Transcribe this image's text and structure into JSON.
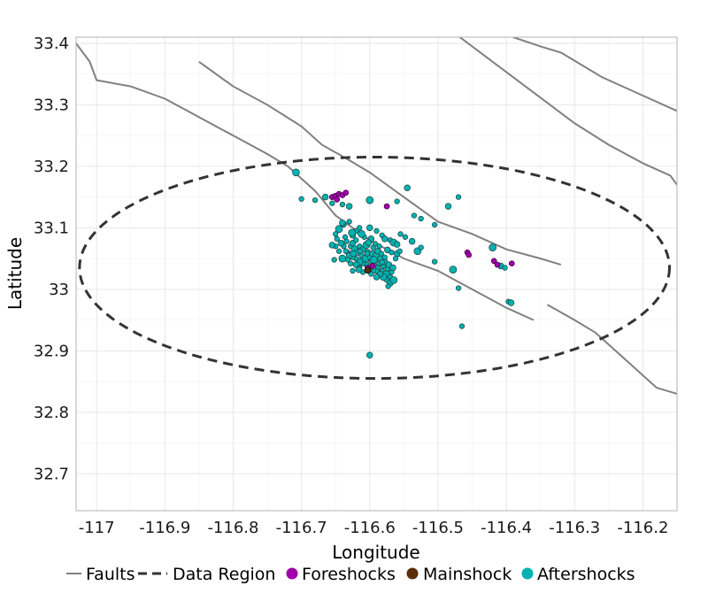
{
  "chart_data": {
    "type": "scatter",
    "title": "",
    "xlabel": "Longitude",
    "ylabel": "Latitude",
    "xlim": [
      -117.03,
      -116.15
    ],
    "ylim": [
      32.64,
      33.41
    ],
    "x_ticks": [
      -117,
      -116.9,
      -116.8,
      -116.7,
      -116.6,
      -116.5,
      -116.4,
      -116.3,
      -116.2
    ],
    "x_tick_labels": [
      "-117",
      "-116.9",
      "-116.8",
      "-116.7",
      "-116.6",
      "-116.5",
      "-116.4",
      "-116.3",
      "-116.2"
    ],
    "y_ticks": [
      32.7,
      32.8,
      32.9,
      33,
      33.1,
      33.2,
      33.3,
      33.4
    ],
    "y_tick_labels": [
      "32.7",
      "32.8",
      "32.9",
      "33",
      "33.1",
      "33.2",
      "33.3",
      "33.4"
    ],
    "grid": true,
    "legend_position": "bottom",
    "legend": [
      {
        "label": "Faults",
        "kind": "line",
        "color": "#808080"
      },
      {
        "label": "Data Region",
        "kind": "dashed",
        "color": "#333333"
      },
      {
        "label": "Foreshocks",
        "kind": "point",
        "color": "#a000a8"
      },
      {
        "label": "Mainshock",
        "kind": "point",
        "color": "#5a2e0c"
      },
      {
        "label": "Aftershocks",
        "kind": "point",
        "color": "#00b2b0"
      }
    ],
    "faults": [
      [
        [
          -117.03,
          33.4
        ],
        [
          -117.01,
          33.37
        ],
        [
          -117.0,
          33.34
        ],
        [
          -116.95,
          33.33
        ],
        [
          -116.9,
          33.31
        ],
        [
          -116.85,
          33.28
        ],
        [
          -116.8,
          33.25
        ],
        [
          -116.75,
          33.22
        ],
        [
          -116.72,
          33.2
        ],
        [
          -116.68,
          33.16
        ],
        [
          -116.65,
          33.12
        ],
        [
          -116.6,
          33.08
        ],
        [
          -116.55,
          33.05
        ],
        [
          -116.5,
          33.03
        ],
        [
          -116.45,
          33.0
        ],
        [
          -116.4,
          32.97
        ],
        [
          -116.36,
          32.95
        ]
      ],
      [
        [
          -116.85,
          33.37
        ],
        [
          -116.8,
          33.33
        ],
        [
          -116.75,
          33.3
        ],
        [
          -116.7,
          33.265
        ],
        [
          -116.67,
          33.235
        ],
        [
          -116.63,
          33.21
        ],
        [
          -116.6,
          33.19
        ],
        [
          -116.55,
          33.15
        ],
        [
          -116.5,
          33.11
        ],
        [
          -116.45,
          33.09
        ],
        [
          -116.4,
          33.065
        ],
        [
          -116.35,
          33.05
        ],
        [
          -116.32,
          33.04
        ]
      ],
      [
        [
          -116.34,
          32.975
        ],
        [
          -116.3,
          32.95
        ],
        [
          -116.27,
          32.93
        ],
        [
          -116.23,
          32.89
        ],
        [
          -116.18,
          32.84
        ],
        [
          -116.15,
          32.83
        ]
      ],
      [
        [
          -116.48,
          33.42
        ],
        [
          -116.42,
          33.37
        ],
        [
          -116.36,
          33.32
        ],
        [
          -116.3,
          33.27
        ],
        [
          -116.25,
          33.235
        ],
        [
          -116.2,
          33.205
        ],
        [
          -116.16,
          33.185
        ],
        [
          -116.15,
          33.17
        ]
      ],
      [
        [
          -116.39,
          33.41
        ],
        [
          -116.35,
          33.395
        ],
        [
          -116.32,
          33.385
        ],
        [
          -116.26,
          33.345
        ],
        [
          -116.2,
          33.315
        ],
        [
          -116.15,
          33.29
        ]
      ]
    ],
    "data_region": {
      "center": [
        -116.593,
        33.035
      ],
      "radius_deg": [
        0.432,
        0.18
      ]
    },
    "mainshock": {
      "x": -116.603,
      "y": 33.031
    },
    "foreshocks": [
      [
        -116.655,
        33.15
      ],
      [
        -116.65,
        33.152
      ],
      [
        -116.645,
        33.155
      ],
      [
        -116.64,
        33.153
      ],
      [
        -116.635,
        33.157
      ],
      [
        -116.648,
        33.146
      ],
      [
        -116.575,
        33.135
      ],
      [
        -116.457,
        33.06
      ],
      [
        -116.455,
        33.056
      ],
      [
        -116.418,
        33.046
      ],
      [
        -116.413,
        33.04
      ],
      [
        -116.392,
        33.042
      ],
      [
        -116.603,
        33.035
      ],
      [
        -116.596,
        33.038
      ]
    ],
    "aftershocks": [
      [
        -116.708,
        33.19
      ],
      [
        -116.7,
        33.147
      ],
      [
        -116.68,
        33.145
      ],
      [
        -116.665,
        33.15
      ],
      [
        -116.655,
        33.14
      ],
      [
        -116.64,
        33.138
      ],
      [
        -116.63,
        33.135
      ],
      [
        -116.6,
        33.145
      ],
      [
        -116.56,
        33.143
      ],
      [
        -116.545,
        33.165
      ],
      [
        -116.535,
        33.12
      ],
      [
        -116.525,
        33.115
      ],
      [
        -116.485,
        33.135
      ],
      [
        -116.47,
        33.15
      ],
      [
        -116.42,
        33.068
      ],
      [
        -116.408,
        33.038
      ],
      [
        -116.402,
        33.035
      ],
      [
        -116.397,
        32.98
      ],
      [
        -116.393,
        32.978
      ],
      [
        -116.505,
        33.105
      ],
      [
        -116.505,
        33.045
      ],
      [
        -116.478,
        33.032
      ],
      [
        -116.47,
        33.002
      ],
      [
        -116.465,
        32.94
      ],
      [
        -116.6,
        32.893
      ],
      [
        -116.555,
        33.09
      ],
      [
        -116.548,
        33.085
      ],
      [
        -116.538,
        33.078
      ],
      [
        -116.53,
        33.062
      ],
      [
        -116.525,
        33.068
      ],
      [
        -116.6,
        33.1
      ],
      [
        -116.59,
        33.095
      ],
      [
        -116.582,
        33.088
      ],
      [
        -116.578,
        33.082
      ],
      [
        -116.57,
        33.08
      ],
      [
        -116.565,
        33.076
      ],
      [
        -116.56,
        33.073
      ],
      [
        -116.615,
        33.1
      ],
      [
        -116.62,
        33.095
      ],
      [
        -116.625,
        33.088
      ],
      [
        -116.63,
        33.11
      ],
      [
        -116.638,
        33.105
      ],
      [
        -116.645,
        33.098
      ],
      [
        -116.65,
        33.09
      ],
      [
        -116.652,
        33.048
      ],
      [
        -116.64,
        33.108
      ],
      [
        -116.632,
        33.06
      ],
      [
        -116.628,
        33.07
      ],
      [
        -116.625,
        33.075
      ],
      [
        -116.622,
        33.065
      ],
      [
        -116.62,
        33.08
      ],
      [
        -116.618,
        33.06
      ],
      [
        -116.615,
        33.07
      ],
      [
        -116.612,
        33.055
      ],
      [
        -116.61,
        33.065
      ],
      [
        -116.608,
        33.045
      ],
      [
        -116.606,
        33.05
      ],
      [
        -116.603,
        33.06
      ],
      [
        -116.6,
        33.052
      ],
      [
        -116.598,
        33.045
      ],
      [
        -116.596,
        33.058
      ],
      [
        -116.594,
        33.04
      ],
      [
        -116.592,
        33.048
      ],
      [
        -116.59,
        33.055
      ],
      [
        -116.588,
        33.035
      ],
      [
        -116.586,
        33.042
      ],
      [
        -116.584,
        33.05
      ],
      [
        -116.582,
        33.03
      ],
      [
        -116.58,
        33.038
      ],
      [
        -116.578,
        33.045
      ],
      [
        -116.576,
        33.025
      ],
      [
        -116.574,
        33.033
      ],
      [
        -116.572,
        33.04
      ],
      [
        -116.57,
        33.02
      ],
      [
        -116.568,
        33.028
      ],
      [
        -116.566,
        33.035
      ],
      [
        -116.575,
        33.015
      ],
      [
        -116.58,
        33.02
      ],
      [
        -116.585,
        33.025
      ],
      [
        -116.59,
        33.03
      ],
      [
        -116.595,
        33.03
      ],
      [
        -116.6,
        33.035
      ],
      [
        -116.605,
        33.04
      ],
      [
        -116.61,
        33.042
      ],
      [
        -116.615,
        33.045
      ],
      [
        -116.62,
        33.05
      ],
      [
        -116.625,
        33.052
      ],
      [
        -116.63,
        33.055
      ],
      [
        -116.635,
        33.062
      ],
      [
        -116.638,
        33.07
      ],
      [
        -116.642,
        33.075
      ],
      [
        -116.605,
        33.072
      ],
      [
        -116.595,
        33.068
      ],
      [
        -116.588,
        33.062
      ],
      [
        -116.583,
        33.058
      ],
      [
        -116.578,
        33.052
      ],
      [
        -116.598,
        33.082
      ],
      [
        -116.608,
        33.085
      ],
      [
        -116.612,
        33.09
      ],
      [
        -116.56,
        33.058
      ],
      [
        -116.556,
        33.062
      ],
      [
        -116.562,
        33.05
      ],
      [
        -116.62,
        33.04
      ],
      [
        -116.615,
        33.035
      ],
      [
        -116.625,
        33.03
      ],
      [
        -116.64,
        33.05
      ],
      [
        -116.645,
        33.062
      ],
      [
        -116.65,
        33.07
      ],
      [
        -116.655,
        33.072
      ],
      [
        -116.632,
        33.048
      ],
      [
        -116.628,
        33.042
      ],
      [
        -116.57,
        33.01
      ],
      [
        -116.565,
        33.015
      ],
      [
        -116.573,
        33.005
      ],
      [
        -116.59,
        33.02
      ],
      [
        -116.598,
        33.025
      ],
      [
        -116.61,
        33.028
      ],
      [
        -116.616,
        33.032
      ],
      [
        -116.636,
        33.085
      ],
      [
        -116.626,
        33.092
      ],
      [
        -116.602,
        33.076
      ],
      [
        -116.592,
        33.074
      ],
      [
        -116.586,
        33.07
      ],
      [
        -116.574,
        33.064
      ],
      [
        -116.568,
        33.06
      ],
      [
        -116.582,
        33.044
      ],
      [
        -116.594,
        33.048
      ],
      [
        -116.604,
        33.058
      ],
      [
        -116.614,
        33.062
      ],
      [
        -116.624,
        33.058
      ],
      [
        -116.634,
        33.078
      ],
      [
        -116.648,
        33.082
      ]
    ]
  }
}
